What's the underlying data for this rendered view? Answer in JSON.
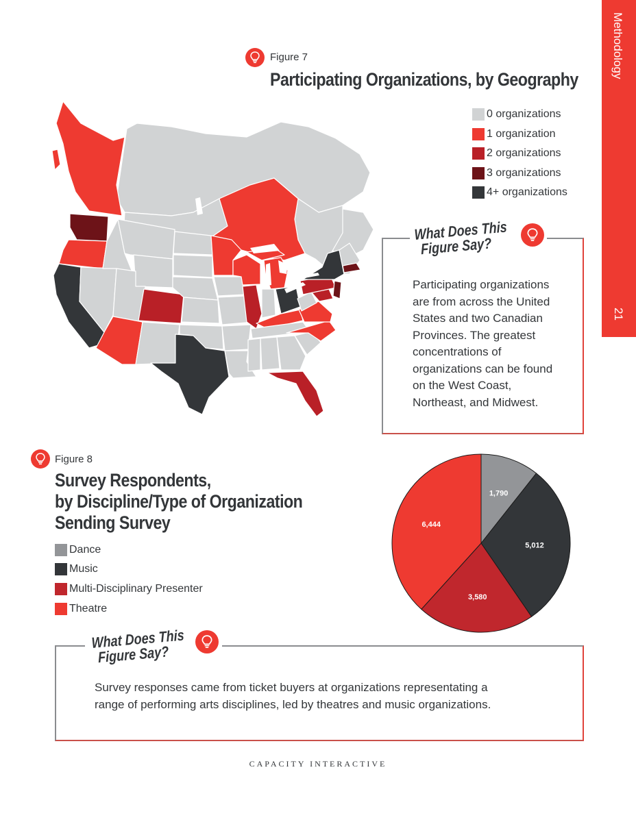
{
  "side_tab": {
    "section": "Methodology",
    "page_number": "21"
  },
  "colors": {
    "accent": "#ee3a31",
    "zero": "#d1d3d4",
    "one": "#ee3a31",
    "two": "#b92027",
    "three": "#6d1318",
    "four_plus": "#333639",
    "dance": "#939598"
  },
  "figure7": {
    "label": "Figure 7",
    "title": "Participating Organizations, by Geography",
    "legend": [
      {
        "label": "0 organizations",
        "color": "#d1d3d4"
      },
      {
        "label": "1 organization",
        "color": "#ee3a31"
      },
      {
        "label": "2 organizations",
        "color": "#b92027"
      },
      {
        "label": "3 organizations",
        "color": "#6d1318"
      },
      {
        "label": "4+ organizations",
        "color": "#333639"
      }
    ],
    "callout": {
      "heading_line1": "What Does This",
      "heading_line2": "Figure Say?",
      "text": "Participating organizations are from across the United States and two Canadian Provinces. The greatest concentrations of organizations can be found on the West Coast, Northeast, and Midwest."
    }
  },
  "figure8": {
    "label": "Figure 8",
    "title_line1": "Survey Respondents,",
    "title_line2": "by Discipline/Type of Organization",
    "title_line3": "Sending Survey",
    "callout": {
      "heading_line1": "What Does This",
      "heading_line2": "Figure Say?",
      "text_line1": "Survey responses came from ticket buyers at organizations representating a",
      "text_line2": "range of performing arts disciplines, led by theatres and music organizations."
    }
  },
  "chart_data": {
    "type": "pie",
    "categories": [
      "Dance",
      "Music",
      "Multi-Disciplinary Presenter",
      "Theatre"
    ],
    "values": [
      1790,
      5012,
      3580,
      6444
    ],
    "value_labels": [
      "1,790",
      "5,012",
      "3,580",
      "6,444"
    ],
    "colors": [
      "#939598",
      "#333639",
      "#c0272d",
      "#ee3a31"
    ],
    "legend_position": "left"
  },
  "footer": "CAPACITY INTERACTIVE"
}
